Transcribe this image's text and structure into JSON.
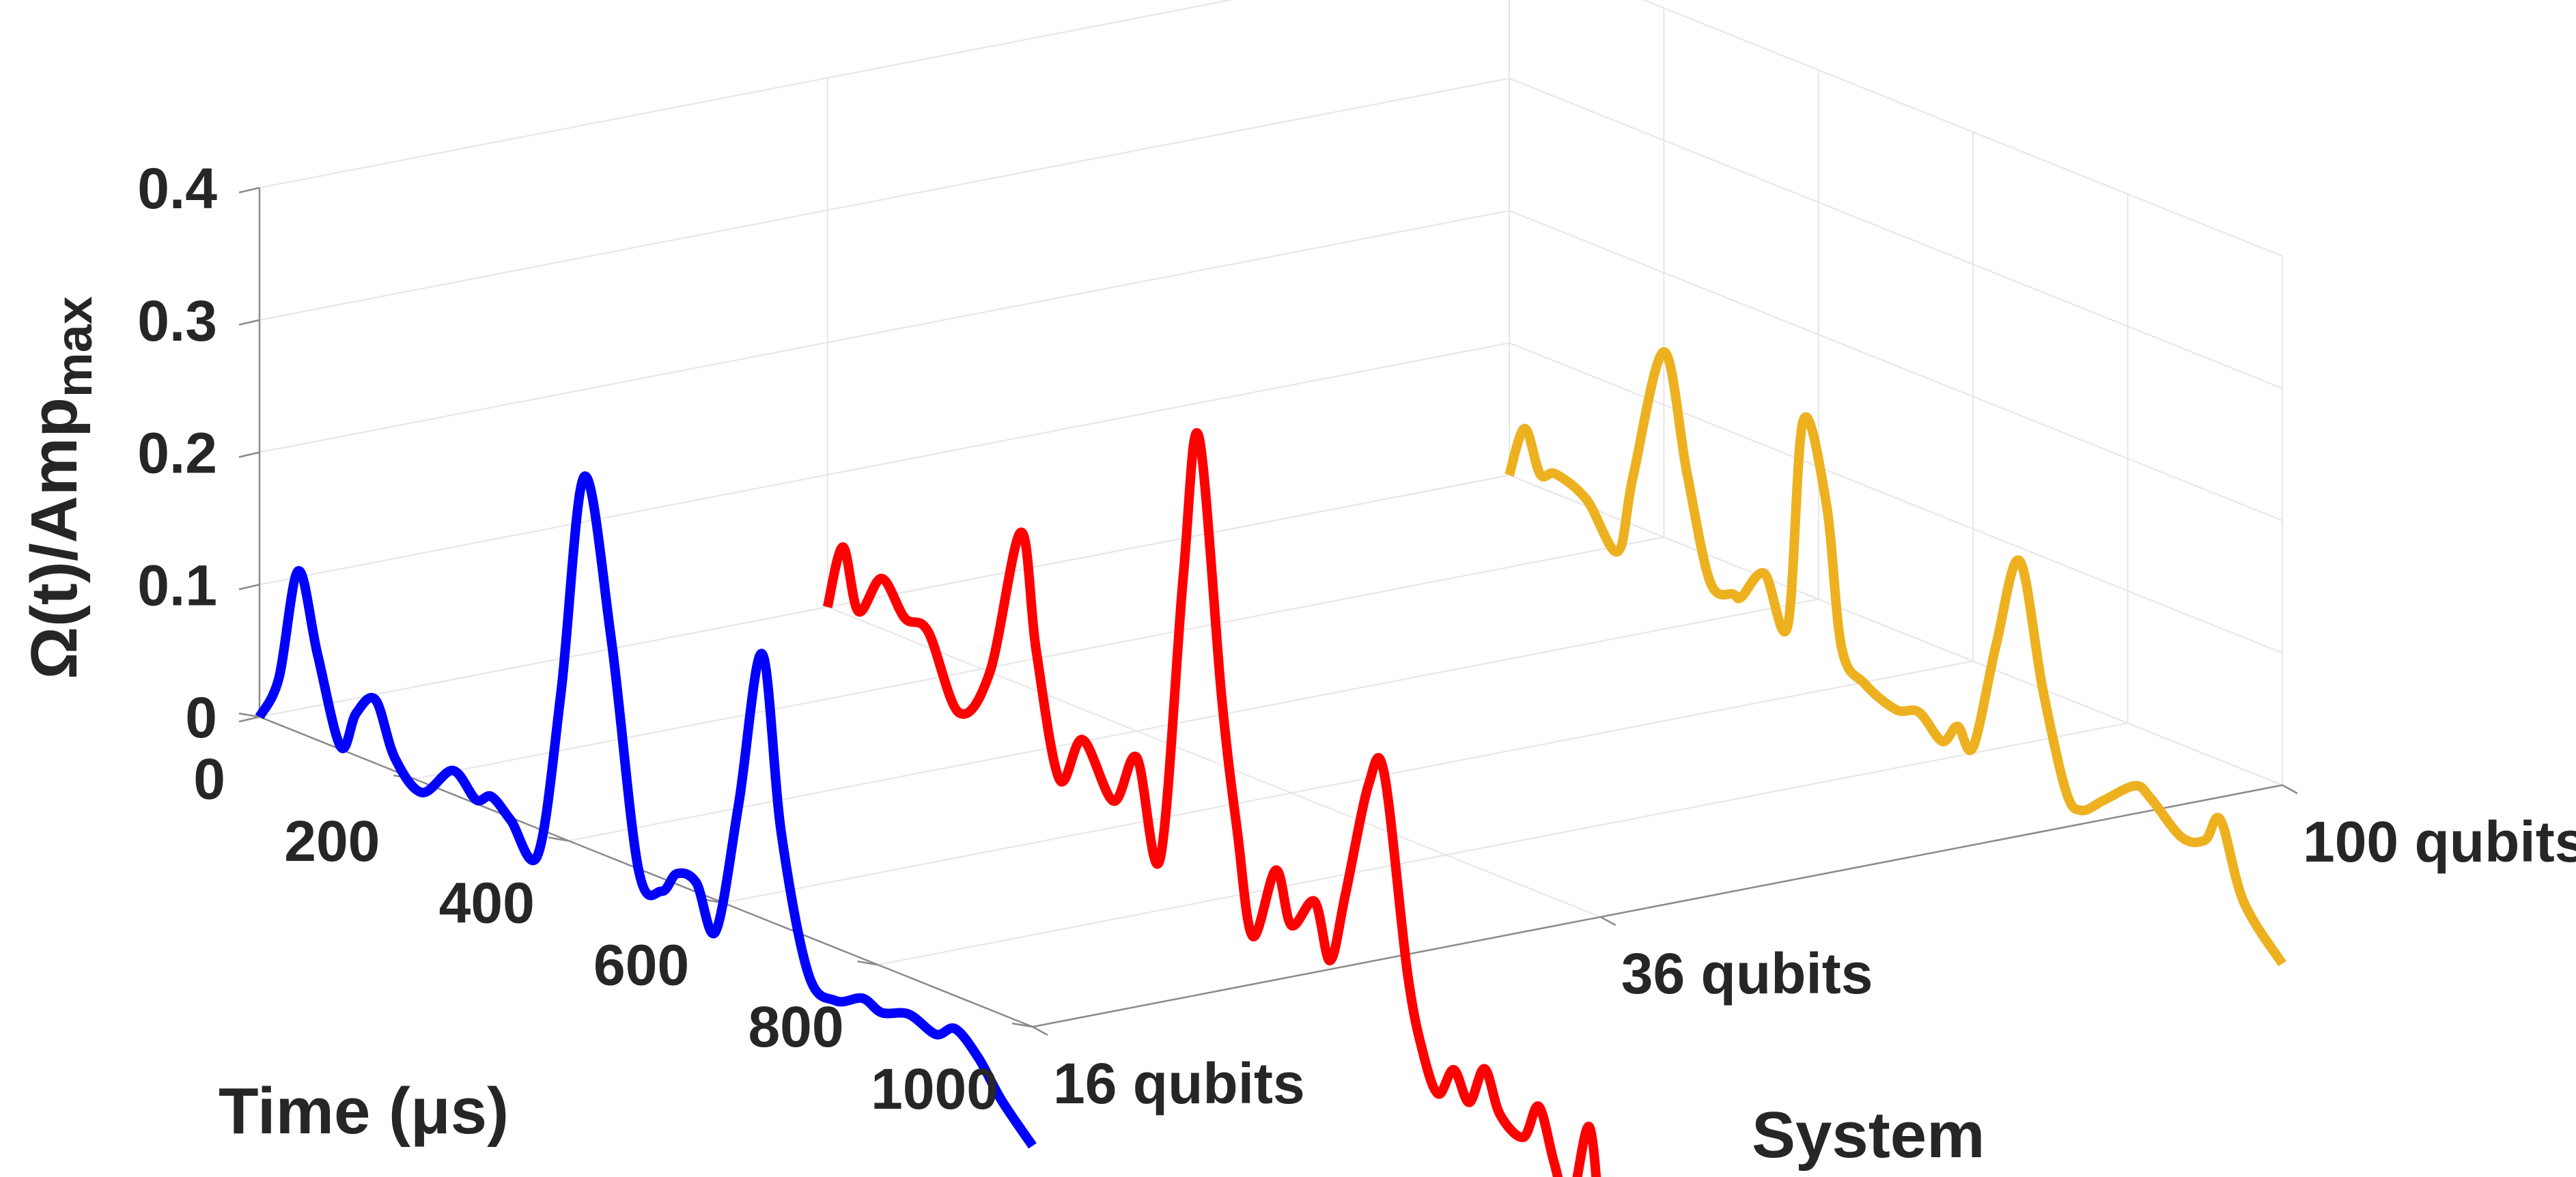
{
  "chart_data": {
    "type": "line",
    "projection": "3d-waterfall",
    "xlabel": "Time (μs)",
    "ylabel": "System",
    "zlabel": "Ω(t)/Amp",
    "zlabel_subscript": "max",
    "xlim": [
      0,
      1000
    ],
    "zlim": [
      0,
      0.4
    ],
    "x_ticks": [
      "0",
      "200",
      "400",
      "600",
      "800",
      "1000"
    ],
    "z_ticks": [
      "0",
      "0.1",
      "0.2",
      "0.3",
      "0.4"
    ],
    "categories": [
      "16 qubits",
      "36 qubits",
      "100 qubits"
    ],
    "grid": true,
    "series": [
      {
        "name": "16 qubits",
        "color": "#0000ff",
        "x": [
          0,
          25,
          50,
          75,
          105,
          125,
          150,
          175,
          210,
          250,
          280,
          300,
          325,
          360,
          390,
          420,
          455,
          490,
          520,
          540,
          565,
          590,
          620,
          650,
          675,
          710,
          745,
          780,
          805,
          840,
          875,
          900,
          930,
          960,
          1000
        ],
        "values": [
          0.0,
          0.035,
          0.122,
          0.065,
          0.002,
          0.032,
          0.048,
          0.01,
          -0.008,
          0.018,
          0.003,
          0.01,
          -0.002,
          -0.02,
          0.11,
          0.28,
          0.165,
          0.0,
          -0.01,
          0.008,
          0.007,
          -0.024,
          0.08,
          0.2,
          0.07,
          -0.028,
          -0.04,
          -0.03,
          -0.035,
          -0.028,
          -0.035,
          -0.025,
          -0.04,
          -0.065,
          -0.09
        ]
      },
      {
        "name": "36 qubits",
        "color": "#ff0000",
        "x": [
          0,
          20,
          40,
          70,
          100,
          130,
          170,
          210,
          250,
          270,
          300,
          330,
          370,
          400,
          430,
          460,
          480,
          510,
          530,
          550,
          580,
          600,
          630,
          650,
          670,
          700,
          720,
          750,
          770,
          790,
          810,
          830,
          850,
          870,
          900,
          920,
          940,
          960,
          985,
          1000
        ],
        "values": [
          0.0,
          0.05,
          0.006,
          0.038,
          0.015,
          0.012,
          -0.04,
          0.0,
          0.115,
          0.03,
          -0.06,
          -0.023,
          -0.06,
          -0.02,
          -0.09,
          0.13,
          0.242,
          0.05,
          -0.045,
          -0.12,
          -0.063,
          -0.1,
          -0.075,
          -0.115,
          -0.06,
          0.03,
          0.043,
          -0.1,
          -0.156,
          -0.183,
          -0.16,
          -0.18,
          -0.15,
          -0.18,
          -0.19,
          -0.162,
          -0.2,
          -0.23,
          -0.162,
          -0.24
        ]
      },
      {
        "name": "100 qubits",
        "color": "#edb120",
        "x": [
          0,
          20,
          40,
          60,
          100,
          140,
          160,
          200,
          230,
          260,
          290,
          300,
          330,
          360,
          380,
          410,
          430,
          460,
          500,
          530,
          560,
          580,
          600,
          630,
          660,
          690,
          720,
          740,
          770,
          810,
          830,
          870,
          900,
          920,
          950,
          1000
        ],
        "values": [
          0.0,
          0.04,
          0.01,
          0.015,
          0.005,
          -0.025,
          0.036,
          0.14,
          0.055,
          -0.02,
          -0.022,
          -0.022,
          0.003,
          -0.03,
          0.13,
          0.075,
          -0.03,
          -0.05,
          -0.06,
          -0.055,
          -0.07,
          -0.054,
          -0.065,
          0.02,
          0.09,
          0.0,
          -0.07,
          -0.08,
          -0.065,
          -0.045,
          -0.05,
          -0.07,
          -0.065,
          -0.045,
          -0.1,
          -0.135
        ]
      }
    ]
  }
}
